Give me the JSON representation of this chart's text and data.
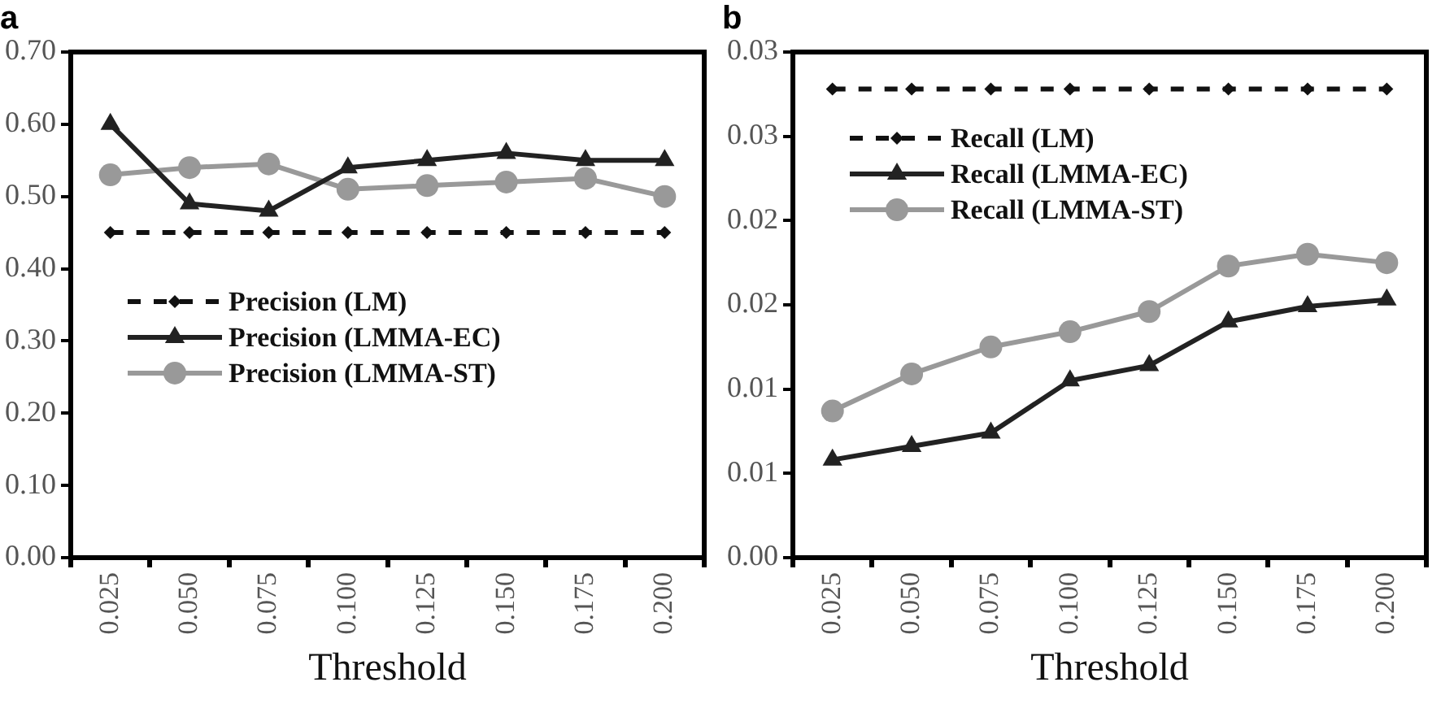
{
  "chart_data": [
    {
      "type": "line",
      "title": "a",
      "xlabel": "Threshold",
      "categories": [
        "0.025",
        "0.050",
        "0.075",
        "0.100",
        "0.125",
        "0.150",
        "0.175",
        "0.200"
      ],
      "series": [
        {
          "name": "Precision (LM)",
          "color": "#111111",
          "marker": "diamond",
          "line_style": "dashed",
          "values": [
            0.45,
            0.45,
            0.45,
            0.45,
            0.45,
            0.45,
            0.45,
            0.45
          ]
        },
        {
          "name": "Precision (LMMA-EC)",
          "color": "#222222",
          "marker": "triangle",
          "line_style": "solid",
          "values": [
            0.6,
            0.49,
            0.48,
            0.54,
            0.55,
            0.56,
            0.55,
            0.55
          ]
        },
        {
          "name": "Precision (LMMA-ST)",
          "color": "#999999",
          "marker": "circle",
          "line_style": "solid",
          "values": [
            0.53,
            0.54,
            0.545,
            0.51,
            0.515,
            0.52,
            0.525,
            0.5
          ]
        }
      ],
      "ylim": [
        0,
        0.7
      ],
      "yticks": [
        {
          "value": 0,
          "label": "0.00"
        },
        {
          "value": 0.1,
          "label": "0.10"
        },
        {
          "value": 0.2,
          "label": "0.20"
        },
        {
          "value": 0.3,
          "label": "0.30"
        },
        {
          "value": 0.4,
          "label": "0.40"
        },
        {
          "value": 0.5,
          "label": "0.50"
        },
        {
          "value": 0.6,
          "label": "0.60"
        },
        {
          "value": 0.7,
          "label": "0.70"
        }
      ],
      "grid": false,
      "legend": "left"
    },
    {
      "type": "line",
      "title": "b",
      "xlabel": "Threshold",
      "categories": [
        "0.025",
        "0.050",
        "0.075",
        "0.100",
        "0.125",
        "0.150",
        "0.175",
        "0.200"
      ],
      "series": [
        {
          "name": "Recall (LM)",
          "color": "#111111",
          "marker": "diamond",
          "line_style": "dashed",
          "values": [
            0.0278,
            0.0278,
            0.0278,
            0.0278,
            0.0278,
            0.0278,
            0.0278,
            0.0278
          ]
        },
        {
          "name": "Recall (LMMA-EC)",
          "color": "#222222",
          "marker": "triangle",
          "line_style": "solid",
          "values": [
            0.0058,
            0.0066,
            0.0074,
            0.0105,
            0.0114,
            0.014,
            0.0149,
            0.0153
          ]
        },
        {
          "name": "Recall (LMMA-ST)",
          "color": "#999999",
          "marker": "circle",
          "line_style": "solid",
          "values": [
            0.0087,
            0.0109,
            0.0125,
            0.0134,
            0.0146,
            0.0173,
            0.018,
            0.0175
          ]
        }
      ],
      "ylim": [
        0,
        0.03
      ],
      "yticks": [
        {
          "value": 0,
          "label": "0.00"
        },
        {
          "value": 0.005,
          "label": "0.01"
        },
        0.01,
        {
          "value": 0.015,
          "label": "0.02"
        },
        0.02,
        {
          "value": 0.025,
          "label": "0.03"
        },
        0.03
      ],
      "grid": false,
      "legend": "top left"
    }
  ]
}
